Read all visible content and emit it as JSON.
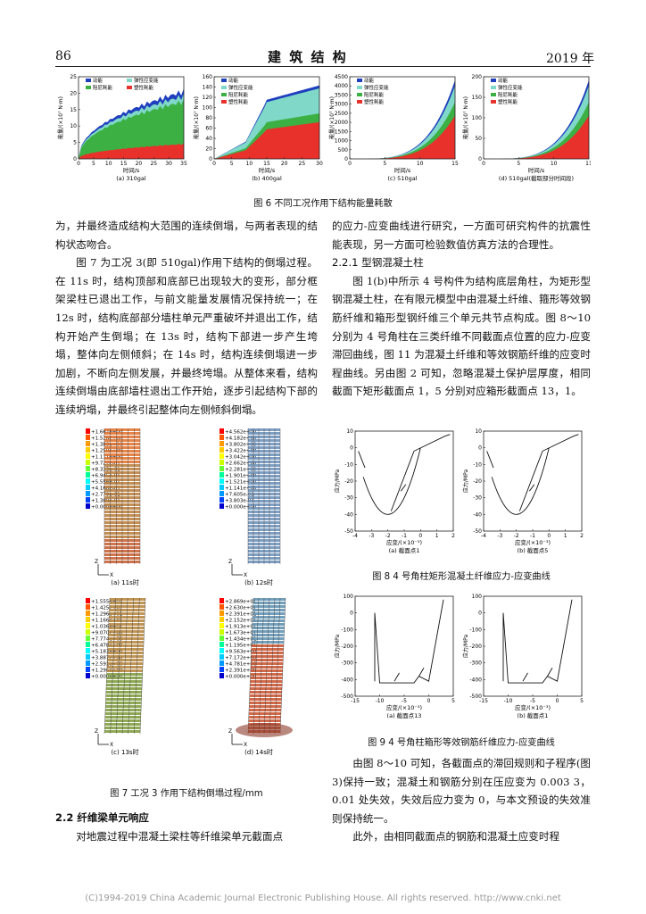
{
  "header": {
    "page_number": "86",
    "journal": "建  筑  结  构",
    "year": "2019 年"
  },
  "fig6": {
    "caption": "图 6   不同工况作用下结构能量耗散",
    "panels": [
      {
        "label": "(a) 310gal",
        "ylabel": "能量/(×10⁷ N·m)",
        "xlabel": "时间/s",
        "xticks": [
          "0",
          "5",
          "10",
          "15",
          "20",
          "25",
          "30",
          "35"
        ],
        "yticks": [
          "0",
          "5",
          "10",
          "15",
          "20",
          "25"
        ],
        "legend": [
          "动能",
          "弹性应变能",
          "阻尼耗能",
          "塑性耗能"
        ]
      },
      {
        "label": "(b) 400gal",
        "ylabel": "能量/(×10⁷ N·m)",
        "xlabel": "时间/s",
        "xticks": [
          "0",
          "5",
          "10",
          "15",
          "20",
          "25",
          "30"
        ],
        "yticks": [
          "0",
          "20",
          "40",
          "60",
          "80",
          "100",
          "120",
          "140",
          "160"
        ],
        "legend": [
          "动能",
          "弹性应变能",
          "阻尼耗能",
          "塑性耗能"
        ]
      },
      {
        "label": "(c) 510gal",
        "ylabel": "能量/(×10⁷ N·m)",
        "xlabel": "时间/s",
        "xticks": [
          "0",
          "5",
          "10",
          "15"
        ],
        "yticks": [
          "0",
          "500",
          "1000",
          "1500",
          "2000",
          "2500",
          "3000",
          "3500",
          "4000",
          "4500"
        ],
        "legend": [
          "动能",
          "弹性应变能",
          "阻尼耗能",
          "塑性耗能"
        ]
      },
      {
        "label": "(d) 510gal(截取部分时间段)",
        "ylabel": "能量/(×10⁷ N·m)",
        "xlabel": "时间/s",
        "xticks": [
          "0",
          "5",
          "10",
          "11"
        ],
        "yticks": [
          "0",
          "50",
          "100",
          "150",
          "200"
        ],
        "legend": [
          "动能",
          "弹性应变能",
          "阻尼耗能",
          "塑性耗能"
        ]
      }
    ],
    "colors": {
      "kinetic": "#1f3fbf",
      "elastic": "#7fd8c8",
      "damping": "#3cb043",
      "plastic": "#e8312b"
    }
  },
  "left_text": [
    "为，并最终造成结构大范围的连续倒塌，与两者表现的结构状态吻合。",
    "图 7 为工况 3(即 510gal)作用下结构的倒塌过程。在 11s 时，结构顶部和底部已出现较大的变形，部分框架梁柱已退出工作，与前文能量发展情况保持统一；在 12s 时，结构底部部分墙柱单元严重破坏并退出工作，结构开始产生倒塌；在 13s 时，结构下部进一步产生垮塌，整体向左侧倾斜；在 14s 时，结构连续倒塌进一步加剧，不断向左侧发展，并最终垮塌。从整体来看，结构连续倒塌由底部墙柱退出工作开始，逐步引起结构下部的连续坍塌，并最终引起整体向左侧倾斜倒塌。"
  ],
  "fig7": {
    "caption": "图 7   工况 3 作用下结构倒塌过程/mm",
    "panels": [
      {
        "label": "(a) 11s时",
        "legend": [
          "+1.667e+00",
          "+1.528e+00",
          "+1.389e+00",
          "+1.250e+00",
          "+1.111e+00",
          "+9.722e-01",
          "+8.333e-01",
          "+6.945e-01",
          "+5.556e-01",
          "+4.168e-01",
          "+2.779e-01",
          "+1.389e-01",
          "+0.000e+00"
        ]
      },
      {
        "label": "(b) 12s时",
        "legend": [
          "+4.562e+00",
          "+4.182e+00",
          "+3.802e+00",
          "+3.422e+00",
          "+3.042e+00",
          "+2.662e+00",
          "+2.281e+00",
          "+1.901e+00",
          "+1.521e+00",
          "+1.141e+00",
          "+7.605e-01",
          "+3.803e-01",
          "+0.000e+00"
        ]
      },
      {
        "label": "(c) 13s时",
        "legend": [
          "+1.555e+01",
          "+1.425e+01",
          "+1.296e+01",
          "+1.166e+01",
          "+1.036e+01",
          "+9.070e+00",
          "+7.774e+00",
          "+6.478e+00",
          "+5.183e+00",
          "+3.887e+00",
          "+2.591e+00",
          "+1.296e+00",
          "+0.000e+00"
        ]
      },
      {
        "label": "(d) 14s时",
        "legend": [
          "+2.869e+01",
          "+2.630e+01",
          "+2.391e+01",
          "+2.152e+01",
          "+1.913e+01",
          "+1.673e+01",
          "+1.434e+01",
          "+1.195e+01",
          "+9.563e+00",
          "+7.172e+00",
          "+4.781e+00",
          "+2.391e+00",
          "+0.000e+00"
        ]
      }
    ],
    "axis_z": "Z",
    "axis_x": "X"
  },
  "section_2_2": {
    "heading": "2.2  纤维梁单元响应",
    "para": "对地震过程中混凝土梁柱等纤维梁单元截面点"
  },
  "right_text": {
    "p1": "的应力-应变曲线进行研究，一方面可研究构件的抗震性能表现，另一方面可检验数值仿真方法的合理性。",
    "heading": "2.2.1  型钢混凝土柱",
    "p2": "图 1(b)中所示 4 号构件为结构底层角柱，为矩形型钢混凝土柱，在有限元模型中由混凝土纤维、箍形等效钢筋纤维和箱形型钢纤维三个单元共节点构成。图 8～10 分别为 4 号角柱在三类纤维不同截面点位置的应力-应变滞回曲线，图 11 为混凝土纤维和等效钢筋纤维的应变时程曲线。另由图 2 可知，忽略混凝土保护层厚度，相同截面下矩形截面点 1，5 分别对应箱形截面点 13，1。",
    "p3": "由图 8～10 可知，各截面点的滞回规则和子程序(图 3)保持一致；混凝土和钢筋分别在压应变为 0.003 3，0.01 处失效，失效后应力变为 0，与本文预设的失效准则保持统一。",
    "p4": "此外，由相同截面点的钢筋和混凝土应变时程"
  },
  "fig8": {
    "caption": "图 8   4 号角柱矩形混凝土纤维应力-应变曲线",
    "panels": [
      {
        "label": "(a) 截面点1",
        "ylabel": "应力/MPa",
        "xlabel": "应变/(×10⁻³)",
        "xticks": [
          "-4",
          "-3",
          "-2",
          "-1",
          "0",
          "1",
          "2"
        ],
        "yticks": [
          "-50",
          "-40",
          "-30",
          "-20",
          "-10",
          "0",
          "10"
        ]
      },
      {
        "label": "(b) 截面点5",
        "ylabel": "应力/MPa",
        "xlabel": "应变/(×10⁻³)",
        "xticks": [
          "-4",
          "-3",
          "-2",
          "-1",
          "0",
          "1",
          "2"
        ],
        "yticks": [
          "-50",
          "-40",
          "-30",
          "-20",
          "-10",
          "0",
          "10"
        ]
      }
    ]
  },
  "fig9": {
    "caption": "图 9   4 号角柱箱形等效钢筋纤维应力-应变曲线",
    "panels": [
      {
        "label": "(a) 截面点13",
        "ylabel": "应力/MPa",
        "xlabel": "应变/(×10⁻³)",
        "xticks": [
          "-15",
          "-10",
          "-5",
          "0",
          "5"
        ],
        "yticks": [
          "-500",
          "-400",
          "-300",
          "-200",
          "-100",
          "0",
          "100"
        ]
      },
      {
        "label": "(b) 截面点1",
        "ylabel": "应力/MPa",
        "xlabel": "应变/(×10⁻³)",
        "xticks": [
          "-15",
          "-10",
          "-5",
          "0",
          "5"
        ],
        "yticks": [
          "-500",
          "-400",
          "-300",
          "-200",
          "-100",
          "0",
          "100"
        ]
      }
    ]
  },
  "footer": "(C)1994-2019 China Academic Journal Electronic Publishing House. All rights reserved.    http://www.cnki.net"
}
